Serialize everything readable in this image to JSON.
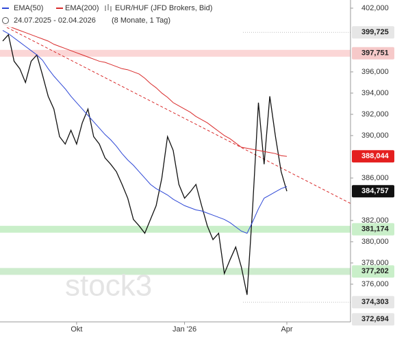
{
  "chart_data": {
    "type": "line",
    "title": "EUR/HUF (JFD Brokers, Bid)",
    "subtitle": "24.07.2025 - 02.04.2026",
    "period": "(8 Monate, 1 Tag)",
    "watermark": "stock3",
    "categories": [
      null,
      null,
      null,
      null,
      null,
      null,
      null,
      null,
      null,
      null,
      null,
      null,
      null,
      "Okt",
      null,
      null,
      null,
      null,
      null,
      null,
      null,
      null,
      null,
      null,
      null,
      null,
      null,
      null,
      null,
      null,
      null,
      null,
      "Jan '26",
      null,
      null,
      null,
      null,
      null,
      null,
      null,
      null,
      null,
      null,
      null,
      null,
      null,
      null,
      null,
      null,
      null,
      "Apr"
    ],
    "series": [
      {
        "name": "EUR/HUF (JFD Brokers, Bid)",
        "color": "#111111",
        "values": [
          398.9,
          399.5,
          397.0,
          396.3,
          395.0,
          397.0,
          397.6,
          395.7,
          393.7,
          392.5,
          389.9,
          389.2,
          390.5,
          389.2,
          391.2,
          392.5,
          389.9,
          389.2,
          387.9,
          387.3,
          386.6,
          385.4,
          384.1,
          382.1,
          381.5,
          380.8,
          382.1,
          383.4,
          386.0,
          389.9,
          388.6,
          385.4,
          384.1,
          384.7,
          385.4,
          383.4,
          381.5,
          380.2,
          380.8,
          377.0,
          378.3,
          379.5,
          377.6,
          375.0,
          383.4,
          393.1,
          387.3,
          393.7,
          389.9,
          386.6,
          384.757
        ]
      },
      {
        "name": "EMA(50)",
        "color": "#2d47d6",
        "values": [
          399.9,
          399.6,
          399.2,
          398.8,
          398.4,
          398.0,
          397.6,
          397.1,
          396.3,
          395.6,
          395.0,
          394.4,
          393.7,
          393.1,
          392.5,
          391.9,
          391.3,
          390.7,
          390.1,
          389.6,
          389.0,
          388.3,
          387.7,
          387.2,
          386.6,
          386.0,
          385.4,
          385.0,
          384.7,
          384.4,
          384.0,
          383.7,
          383.4,
          383.2,
          383.0,
          382.9,
          382.7,
          382.5,
          382.3,
          382.1,
          381.8,
          381.4,
          381.0,
          380.8,
          381.9,
          383.1,
          384.1,
          384.4,
          384.7,
          385.0,
          385.2
        ]
      },
      {
        "name": "EMA(200)",
        "color": "#d92b2b",
        "values": [
          400.5,
          400.3,
          400.1,
          399.9,
          399.7,
          399.5,
          399.3,
          399.1,
          398.9,
          398.6,
          398.4,
          398.2,
          398.0,
          397.8,
          397.6,
          397.4,
          397.2,
          397.0,
          396.9,
          396.7,
          396.5,
          396.3,
          396.2,
          396.0,
          395.8,
          395.4,
          394.9,
          394.5,
          394.0,
          393.6,
          393.1,
          392.8,
          392.5,
          392.2,
          391.8,
          391.5,
          391.2,
          390.8,
          390.4,
          390.0,
          389.7,
          389.3,
          388.9,
          388.8,
          388.7,
          388.6,
          388.5,
          388.4,
          388.3,
          388.1,
          388.044
        ]
      }
    ],
    "ylim": [
      372.45,
      402.77
    ],
    "yticks": [
      {
        "value": 402,
        "label": "402,000"
      },
      {
        "value": 396,
        "label": "396,000"
      },
      {
        "value": 394,
        "label": "394,000"
      },
      {
        "value": 392,
        "label": "392,000"
      },
      {
        "value": 390,
        "label": "390,000"
      },
      {
        "value": 386,
        "label": "386,000"
      },
      {
        "value": 382,
        "label": "382,000"
      },
      {
        "value": 380,
        "label": "380,000"
      },
      {
        "value": 378,
        "label": "378,000"
      },
      {
        "value": 376,
        "label": "376,000"
      }
    ],
    "price_tags": [
      {
        "value": 399.725,
        "label": "399,725",
        "fill": "#e6e6e6",
        "text_color": "#222222",
        "line": "#bbbbbb"
      },
      {
        "value": 397.751,
        "label": "397,751",
        "fill": "#f6c9c9",
        "text_color": "#222222",
        "band": "#fbd6d6"
      },
      {
        "value": 388.044,
        "label": "388,044",
        "fill": "#e41f1f",
        "text_color": "#ffffff"
      },
      {
        "value": 384.757,
        "label": "384,757",
        "fill": "#111111",
        "text_color": "#ffffff"
      },
      {
        "value": 381.174,
        "label": "381,174",
        "fill": "#c9efc9",
        "text_color": "#222222",
        "band": "#c9efc9"
      },
      {
        "value": 377.202,
        "label": "377,202",
        "fill": "#c9efc9",
        "text_color": "#222222",
        "band": "#cdeccd"
      },
      {
        "value": 374.303,
        "label": "374,303",
        "fill": "#e6e6e6",
        "text_color": "#222222",
        "line": "#bbbbbb"
      },
      {
        "value": 372.694,
        "label": "372,694",
        "fill": "#e6e6e6",
        "text_color": "#222222"
      }
    ]
  }
}
